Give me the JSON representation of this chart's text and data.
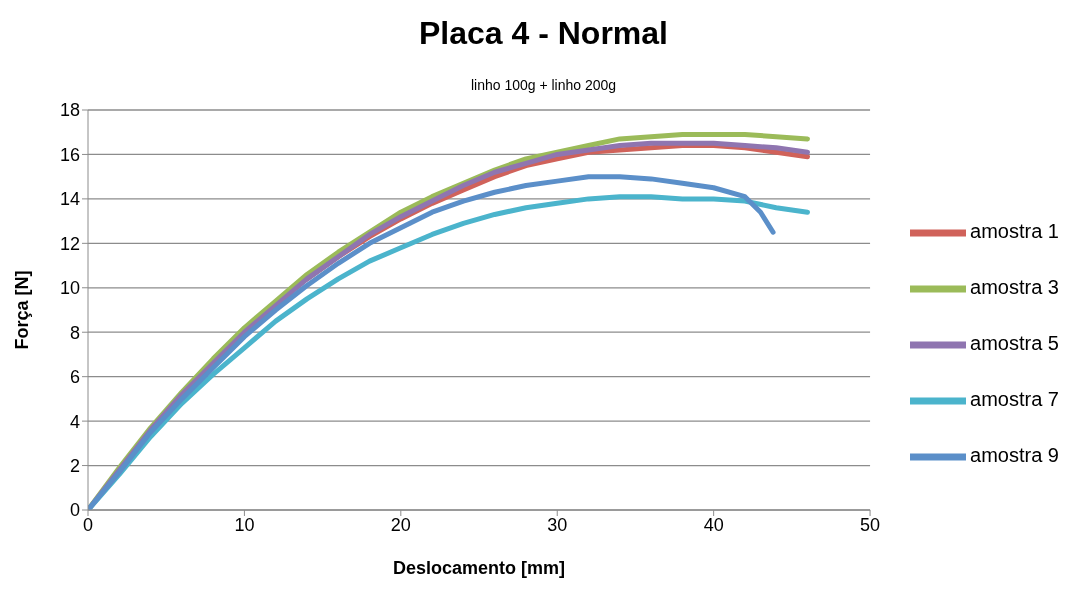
{
  "chart_data": {
    "type": "line",
    "title": "Placa 4 - Normal",
    "subtitle": "linho 100g + linho 200g",
    "xlabel": "Deslocamento [mm]",
    "ylabel": "Força [N]",
    "xlim": [
      0,
      50
    ],
    "xticks": [
      0,
      10,
      20,
      30,
      40,
      50
    ],
    "ylim": [
      0,
      18
    ],
    "yticks": [
      0,
      2,
      4,
      6,
      8,
      10,
      12,
      14,
      16,
      18
    ],
    "grid": "y",
    "legend": "right",
    "marker": "none",
    "line_style": "solid",
    "x": [
      0,
      2,
      4,
      6,
      8,
      10,
      12,
      14,
      16,
      18,
      20,
      22,
      24,
      26,
      28,
      30,
      32,
      34,
      36,
      38,
      40,
      42,
      44,
      46
    ],
    "series": [
      {
        "name": "amostra 1",
        "color": "#d0625a",
        "values": [
          null,
          null,
          null,
          null,
          null,
          null,
          null,
          10.4,
          11.4,
          12.3,
          13.1,
          13.8,
          14.4,
          15.0,
          15.5,
          15.8,
          16.1,
          16.2,
          16.3,
          16.4,
          16.4,
          16.3,
          16.1,
          15.9
        ]
      },
      {
        "name": "amostra 3",
        "color": "#9bbb59",
        "values": [
          0,
          1.9,
          3.7,
          5.3,
          6.8,
          8.2,
          9.4,
          10.6,
          11.6,
          12.5,
          13.4,
          14.1,
          14.7,
          15.3,
          15.8,
          16.1,
          16.4,
          16.7,
          16.8,
          16.9,
          16.9,
          16.9,
          16.8,
          16.7
        ]
      },
      {
        "name": "amostra 5",
        "color": "#8f75b0",
        "values": [
          0,
          1.8,
          3.6,
          5.2,
          6.6,
          8.0,
          9.2,
          10.4,
          11.4,
          12.4,
          13.2,
          13.9,
          14.6,
          15.2,
          15.6,
          16.0,
          16.2,
          16.4,
          16.5,
          16.5,
          16.5,
          16.4,
          16.3,
          16.1
        ]
      },
      {
        "name": "amostra 7",
        "color": "#4bb4cc",
        "values": [
          0,
          1.6,
          3.3,
          4.8,
          6.1,
          7.3,
          8.5,
          9.5,
          10.4,
          11.2,
          11.8,
          12.4,
          12.9,
          13.3,
          13.6,
          13.8,
          14.0,
          14.1,
          14.1,
          14.0,
          14.0,
          13.9,
          13.6,
          13.4
        ]
      },
      {
        "name": "amostra 9",
        "color": "#5b8fc9",
        "x": [
          0,
          2,
          4,
          6,
          8,
          10,
          12,
          14,
          16,
          18,
          20,
          22,
          24,
          26,
          28,
          30,
          32,
          34,
          36,
          38,
          40,
          42,
          43,
          43.8
        ],
        "values": [
          0,
          1.7,
          3.5,
          5.0,
          6.4,
          7.8,
          9.0,
          10.1,
          11.1,
          12.0,
          12.7,
          13.4,
          13.9,
          14.3,
          14.6,
          14.8,
          15.0,
          15.0,
          14.9,
          14.7,
          14.5,
          14.1,
          13.4,
          12.5
        ]
      }
    ]
  }
}
